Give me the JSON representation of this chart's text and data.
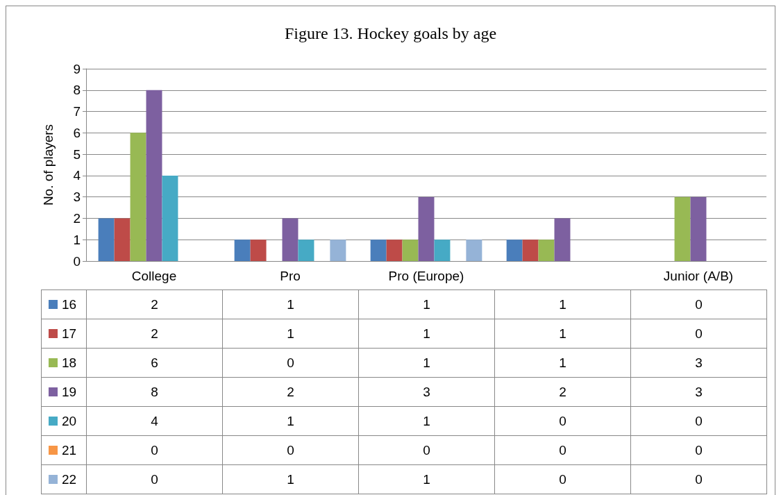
{
  "chart_data": {
    "type": "bar",
    "title": "Figure 13. Hockey goals by age",
    "ylabel": "No. of players",
    "categories": [
      "College",
      "Pro",
      "Pro (Europe)",
      null,
      "Junior (A/B)"
    ],
    "series": [
      {
        "name": "16",
        "color": "#4a7ebb",
        "values": [
          2,
          1,
          1,
          1,
          0
        ]
      },
      {
        "name": "17",
        "color": "#be4b48",
        "values": [
          2,
          1,
          1,
          1,
          0
        ]
      },
      {
        "name": "18",
        "color": "#98b954",
        "values": [
          6,
          0,
          1,
          1,
          3
        ]
      },
      {
        "name": "19",
        "color": "#7d60a0",
        "values": [
          8,
          2,
          3,
          2,
          3
        ]
      },
      {
        "name": "20",
        "color": "#46aac5",
        "values": [
          4,
          1,
          1,
          0,
          0
        ]
      },
      {
        "name": "21",
        "color": "#f79646",
        "values": [
          0,
          0,
          0,
          0,
          0
        ]
      },
      {
        "name": "22",
        "color": "#95b3d7",
        "values": [
          0,
          1,
          1,
          0,
          0
        ]
      }
    ],
    "ylim": [
      0,
      9
    ],
    "yticks": [
      0,
      1,
      2,
      3,
      4,
      5,
      6,
      7,
      8,
      9
    ],
    "grid": "y",
    "data_labels": true,
    "legend": "bottom"
  }
}
